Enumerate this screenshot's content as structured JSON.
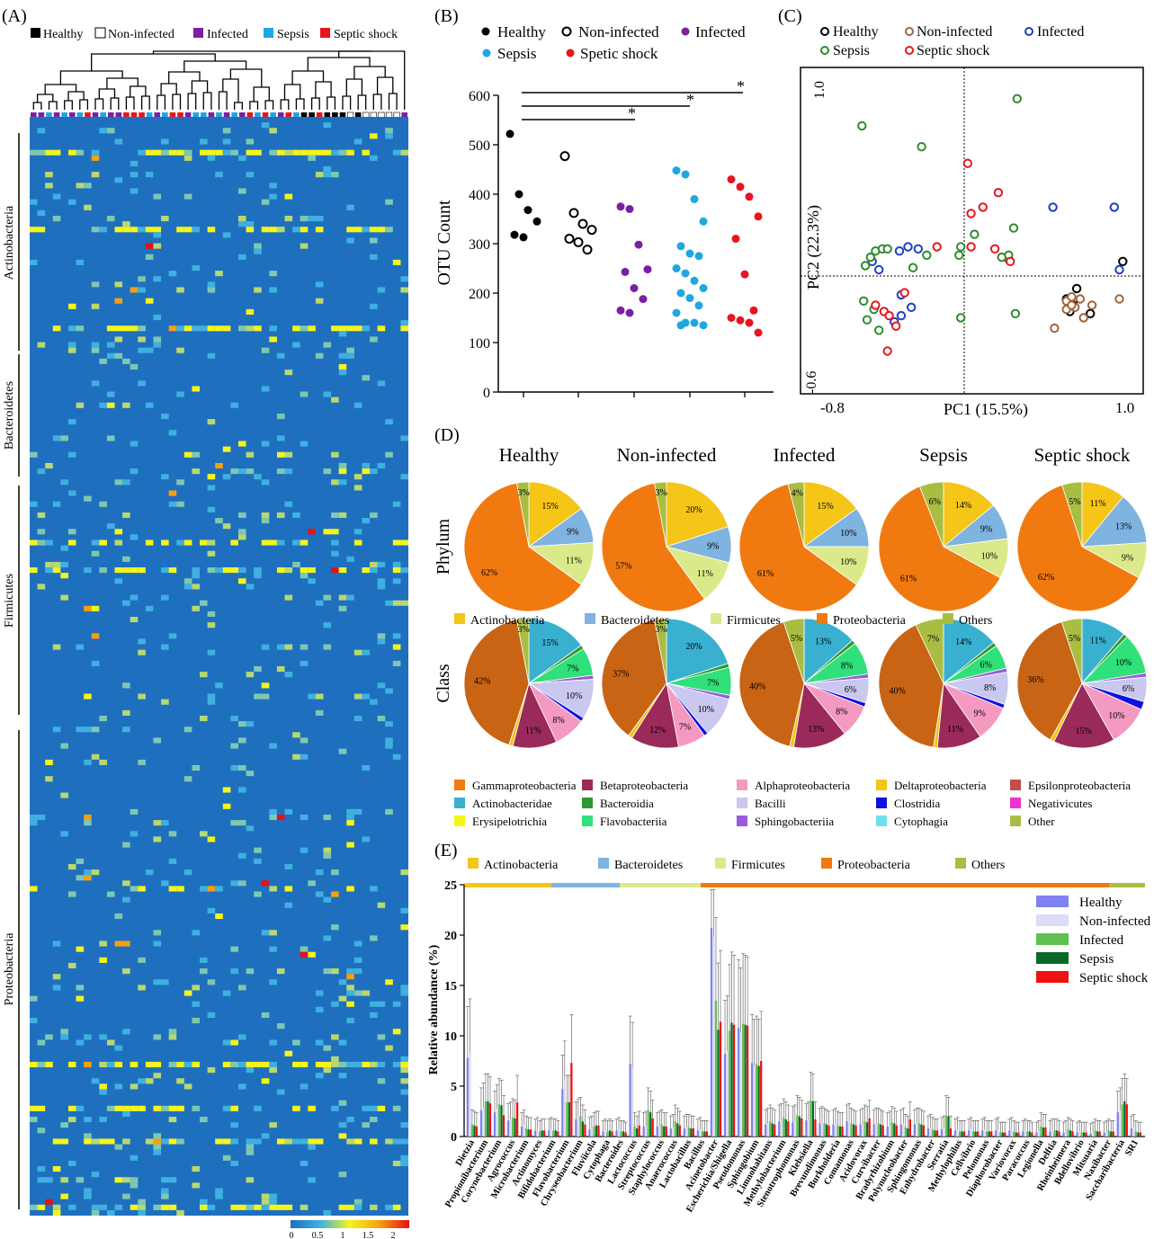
{
  "panels": {
    "A": "(A)",
    "B": "(B)",
    "C": "(C)",
    "D": "(D)",
    "E": "(E)"
  },
  "groups": [
    "Healthy",
    "Non-infected",
    "Infected",
    "Sepsis",
    "Septic shock"
  ],
  "colors": {
    "healthy": "#000000",
    "noninfected": "#ffffff",
    "infected": "#7b1fa2",
    "sepsis": "#1ea7e1",
    "septic_shock": "#e8141e",
    "heat_bg": "#1f6fbf",
    "actino": "#f5c518",
    "bacteroid": "#7fb3e0",
    "firmi": "#dce98a",
    "proteo": "#f07a10",
    "others": "#a9bd43"
  },
  "heatmap": {
    "legend": [
      "Healthy",
      "Non-infected",
      "Infected",
      "Sepsis",
      "Septic shock"
    ],
    "phyla": [
      "Actinobacteria",
      "Bacteroidetes",
      "Firmicutes",
      "Proteobacteria"
    ],
    "scale_ticks": [
      "0",
      "0.5",
      "1",
      "1.5",
      "2"
    ],
    "column_groups": [
      3,
      3,
      4,
      3,
      4,
      3,
      4,
      5,
      3,
      4,
      3,
      3,
      5,
      5,
      5,
      4,
      3,
      4,
      5,
      5,
      3,
      4,
      4,
      3,
      4,
      3,
      4,
      3,
      5,
      4,
      5,
      4,
      3,
      5,
      4,
      1,
      1,
      5,
      1,
      1,
      1,
      2,
      1,
      2,
      2,
      2,
      2,
      2,
      3
    ]
  },
  "panel_b": {
    "legend": [
      "Healthy",
      "Non-infected",
      "Infected",
      "Sepsis",
      "Spetic shock"
    ],
    "ylabel": "OTU Count",
    "yticks": [
      "0",
      "100",
      "200",
      "300",
      "400",
      "500",
      "600"
    ],
    "sig": [
      "*",
      "*",
      "*"
    ]
  },
  "panel_c": {
    "legend": [
      "Healthy",
      "Non-infected",
      "Infected",
      "Sepsis",
      "Septic shock"
    ],
    "xlabel": "PC1 (15.5%)",
    "ylabel": "PC2 (22.3%)",
    "xticks": [
      "-0.8",
      "1.0"
    ],
    "yticks": [
      "1.0",
      "-0.6"
    ]
  },
  "panel_d": {
    "titles": [
      "Healthy",
      "Non-infected",
      "Infected",
      "Sepsis",
      "Septic shock"
    ],
    "row_labels": [
      "Phylum",
      "Class"
    ],
    "phylum_legend": [
      "Actinobacteria",
      "Bacteroidetes",
      "Firmicutes",
      "Proteobacteria",
      "Others"
    ],
    "class_legend": [
      [
        "Gammaproteobacteria",
        "Betaproteobacteria",
        "Alphaproteobacteria",
        "Deltaproteobacteria",
        "Epsilonproteobacteria"
      ],
      [
        "Actinobacteridae",
        "Bacteroidia",
        "Bacilli",
        "Clostridia",
        "Negativicutes"
      ],
      [
        "Erysipelotrichia",
        "Flavobacteriia",
        "Sphingobacteriia",
        "Cytophagia",
        "Other"
      ]
    ],
    "class_legend_colors": [
      [
        "#f07a10",
        "#9a2a5a",
        "#f49ac0",
        "#f5c518",
        "#c0504d"
      ],
      [
        "#39b0d0",
        "#2e9a2e",
        "#c8c8f0",
        "#1010e0",
        "#f030d0"
      ],
      [
        "#f5f51a",
        "#30e07a",
        "#9a5ae0",
        "#70e0f0",
        "#a9bd43"
      ]
    ]
  },
  "panel_e": {
    "phylum_legend": [
      "Actinobacteria",
      "Bacteroidetes",
      "Firmicutes",
      "Proteobacteria",
      "Others"
    ],
    "ylabel": "Relative abundance (%)",
    "yticks": [
      "0",
      "5",
      "10",
      "15",
      "20",
      "25"
    ],
    "legend": [
      "Healthy",
      "Non-infected",
      "Infected",
      "Sepsis",
      "Septic shock"
    ],
    "legend_colors": [
      "#8080f0",
      "#dcdcf8",
      "#60c050",
      "#0a6a2a",
      "#f01010"
    ]
  },
  "chart_data": [
    {
      "type": "heatmap",
      "title": "",
      "rows_by_phylum": [
        "Actinobacteria",
        "Bacteroidetes",
        "Firmicutes",
        "Proteobacteria"
      ],
      "columns": 49,
      "value_range": [
        0,
        2
      ]
    },
    {
      "type": "scatter",
      "ylabel": "OTU Count",
      "ylim": [
        0,
        600
      ],
      "series": [
        {
          "name": "Healthy",
          "values": [
            522,
            400,
            368,
            345,
            318,
            313
          ]
        },
        {
          "name": "Non-infected",
          "values": [
            477,
            362,
            340,
            328,
            310,
            303,
            288
          ]
        },
        {
          "name": "Infected",
          "values": [
            375,
            370,
            298,
            248,
            243,
            210,
            188,
            165,
            160
          ]
        },
        {
          "name": "Sepsis",
          "values": [
            448,
            440,
            390,
            345,
            295,
            280,
            275,
            250,
            240,
            225,
            210,
            200,
            190,
            175,
            160,
            140,
            140,
            135,
            135
          ]
        },
        {
          "name": "Spetic shock",
          "values": [
            430,
            415,
            395,
            355,
            310,
            238,
            165,
            150,
            145,
            140,
            120
          ]
        }
      ]
    },
    {
      "type": "scatter",
      "xlabel": "PC1 (15.5%)",
      "ylabel": "PC2 (22.3%)",
      "xlim": [
        -0.8,
        1.0
      ],
      "ylim": [
        -0.6,
        1.0
      ],
      "series": [
        {
          "name": "Healthy",
          "x": [
            0.93,
            0.64,
            0.6,
            0.66,
            0.74,
            0.64,
            0.62
          ],
          "y": [
            0.07,
            -0.12,
            -0.11,
            -0.06,
            -0.18,
            -0.14,
            -0.17
          ]
        },
        {
          "name": "Non-infected",
          "x": [
            0.6,
            0.6,
            0.65,
            0.63,
            0.68,
            0.7,
            0.75,
            0.63,
            0.53,
            0.91
          ],
          "y": [
            -0.12,
            -0.16,
            -0.15,
            -0.1,
            -0.11,
            -0.2,
            -0.14,
            -0.14,
            -0.25,
            -0.11
          ]
        },
        {
          "name": "Infected",
          "x": [
            -0.54,
            -0.5,
            -0.38,
            -0.33,
            -0.27,
            -0.37,
            -0.41,
            -0.31,
            -0.37,
            0.52,
            0.88,
            0.91
          ],
          "y": [
            0.07,
            0.03,
            0.12,
            0.14,
            0.13,
            -0.19,
            -0.22,
            -0.15,
            -0.09,
            0.33,
            0.33,
            0.03
          ]
        },
        {
          "name": "Sepsis",
          "x": [
            -0.6,
            -0.58,
            -0.55,
            -0.52,
            -0.48,
            -0.45,
            -0.3,
            -0.25,
            -0.22,
            -0.03,
            0.06,
            0.26,
            0.29,
            0.3,
            0.31,
            -0.02,
            0.26,
            0.22,
            -0.59,
            -0.53,
            -0.57,
            -0.5,
            -0.02
          ],
          "y": [
            0.72,
            0.05,
            0.09,
            0.12,
            0.13,
            0.13,
            0.04,
            0.62,
            0.1,
            0.1,
            0.2,
            0.08,
            0.23,
            -0.18,
            0.85,
            -0.2,
            0.1,
            0.09,
            -0.12,
            -0.16,
            -0.21,
            -0.26,
            0.14
          ]
        },
        {
          "name": "Septic shock",
          "x": [
            0.02,
            0.04,
            0.04,
            0.11,
            0.2,
            0.27,
            0.18,
            -0.52,
            -0.47,
            -0.44,
            -0.4,
            -0.45,
            -0.16,
            -0.35
          ],
          "y": [
            0.54,
            0.3,
            0.14,
            0.33,
            0.4,
            0.07,
            0.13,
            -0.14,
            -0.17,
            -0.19,
            -0.24,
            -0.36,
            0.14,
            -0.08
          ]
        }
      ]
    },
    {
      "type": "pie",
      "title": "Phylum",
      "categories": [
        "Actinobacteria",
        "Bacteroidetes",
        "Firmicutes",
        "Proteobacteria",
        "Others"
      ],
      "series": [
        {
          "name": "Healthy",
          "values": [
            15,
            9,
            11,
            62,
            3
          ]
        },
        {
          "name": "Non-infected",
          "values": [
            20,
            9,
            11,
            57,
            3
          ]
        },
        {
          "name": "Infected",
          "values": [
            15,
            10,
            10,
            61,
            4
          ]
        },
        {
          "name": "Sepsis",
          "values": [
            14,
            9,
            10,
            61,
            6
          ]
        },
        {
          "name": "Septic shock",
          "values": [
            11,
            13,
            9,
            62,
            5
          ]
        }
      ]
    },
    {
      "type": "pie",
      "title": "Class",
      "categories": [
        "Actinobacteridae",
        "Bacteroidia",
        "Flavobacteriia",
        "Sphingobacteriia",
        "Bacilli",
        "Clostridia",
        "Alphaproteobacteria",
        "Betaproteobacteria",
        "Deltaproteobacteria",
        "Gammaproteobacteria",
        "Other"
      ],
      "series": [
        {
          "name": "Healthy",
          "values": [
            15,
            1,
            7,
            1,
            10,
            1,
            8,
            11,
            1,
            42,
            3
          ]
        },
        {
          "name": "Non-infected",
          "values": [
            20,
            1,
            7,
            1,
            10,
            1,
            7,
            12,
            1,
            37,
            3
          ]
        },
        {
          "name": "Infected",
          "values": [
            13,
            1,
            8,
            1,
            6,
            1,
            8,
            13,
            1,
            40,
            5
          ]
        },
        {
          "name": "Sepsis",
          "values": [
            14,
            1,
            6,
            1,
            8,
            1,
            9,
            11,
            1,
            40,
            7
          ]
        },
        {
          "name": "Septic shock",
          "values": [
            11,
            1,
            10,
            1,
            6,
            2,
            10,
            15,
            1,
            36,
            5
          ]
        }
      ],
      "labels_shown": [
        {
          "group": "Healthy",
          "labels": [
            "15%",
            "7%",
            "10%",
            "8%",
            "11%",
            "42%",
            "3%"
          ]
        },
        {
          "group": "Non-infected",
          "labels": [
            "20%",
            "7%",
            "10%",
            "7%",
            "12%",
            "37%",
            "3%"
          ]
        },
        {
          "group": "Infected",
          "labels": [
            "13%",
            "8%",
            "6%",
            "8%",
            "13%",
            "40%",
            "5%"
          ]
        },
        {
          "group": "Sepsis",
          "labels": [
            "14%",
            "6%",
            "8%",
            "9%",
            "11%",
            "40%",
            "7%"
          ]
        },
        {
          "group": "Septic shock",
          "labels": [
            "11%",
            "10%",
            "6%",
            "10%",
            "15%",
            "36%",
            "5%"
          ]
        }
      ]
    },
    {
      "type": "bar",
      "ylabel": "Relative abundance (%)",
      "ylim": [
        0,
        25
      ],
      "categories": [
        "Dietzia",
        "Propionibacterium",
        "Corynebacterium",
        "Agrococcus",
        "Microbacterium",
        "Actinomyces",
        "Bifidobacterium",
        "Flavobacterium",
        "Chryseobacterium",
        "Fluviicola",
        "Cytophaga",
        "Bacteroides",
        "Lactococcus",
        "Streptococcus",
        "Staphylococcus",
        "Anaerococcus",
        "Lactobacillus",
        "Bacillus",
        "Acinetobacter",
        "Escherichia/Shigella",
        "Pseudomonas",
        "Sphingobium",
        "Limnohabitans",
        "Methylobacterium",
        "Stenotrophomonas",
        "Klebsiella",
        "Brevundimonas",
        "Burkholderia",
        "Comamonas",
        "Acidovorax",
        "Curvibacter",
        "Bradyrhizobium",
        "Polynucleobacter",
        "Sphingomonas",
        "Enhydrobacter",
        "Serratia",
        "Methylophilus",
        "Cellvibrio",
        "Pelomonas",
        "Diaphorobacter",
        "Variovorax",
        "Paracoccus",
        "Legionella",
        "Delftia",
        "Rheinheimera",
        "Bdellovibrio",
        "Mitsuaria",
        "Naxibacter",
        "Saccharibacteria",
        "SR1"
      ],
      "series": [
        {
          "name": "Healthy",
          "values": [
            7.8,
            2.6,
            2.4,
            1.6,
            1.0,
            0.6,
            0.6,
            4.7,
            1.7,
            0.7,
            0.5,
            0.6,
            7.2,
            1.0,
            1.0,
            0.8,
            0.8,
            0.6,
            20.7,
            8.2,
            10.8,
            7.3,
            1.2,
            1.5,
            1.4,
            1.6,
            1.3,
            1.2,
            1.5,
            1.2,
            1.2,
            1.0,
            1.2,
            1.2,
            0.8,
            0.7,
            0.6,
            0.6,
            0.6,
            0.6,
            0.6,
            0.5,
            0.4,
            0.5,
            0.4,
            0.4,
            0.3,
            0.4,
            2.4,
            0.8
          ]
        },
        {
          "name": "Non-infected",
          "values": [
            8.3,
            2.9,
            2.8,
            1.7,
            1.2,
            0.7,
            0.7,
            5.6,
            1.9,
            0.8,
            0.6,
            0.7,
            6.8,
            1.1,
            1.1,
            0.9,
            0.9,
            0.7,
            19.8,
            8.5,
            10.3,
            7.0,
            1.3,
            1.6,
            1.5,
            1.7,
            1.4,
            1.3,
            1.6,
            1.3,
            1.3,
            1.1,
            1.3,
            1.3,
            0.9,
            0.8,
            0.7,
            0.7,
            0.7,
            0.7,
            0.7,
            0.6,
            0.5,
            0.6,
            0.5,
            0.5,
            0.4,
            0.5,
            2.6,
            0.9
          ]
        },
        {
          "name": "Infected",
          "values": [
            1.2,
            3.5,
            3.2,
            1.9,
            0.8,
            0.5,
            0.6,
            3.4,
            2.0,
            1.0,
            0.5,
            0.5,
            1.0,
            2.6,
            1.2,
            1.5,
            0.9,
            0.5,
            13.5,
            10.5,
            11.2,
            7.2,
            1.5,
            1.9,
            2.1,
            3.6,
            1.3,
            1.1,
            1.3,
            1.5,
            1.3,
            1.4,
            0.9,
            1.3,
            0.7,
            2.1,
            0.5,
            0.5,
            0.5,
            0.4,
            0.5,
            0.5,
            1.0,
            0.6,
            0.7,
            0.4,
            0.6,
            0.6,
            3.2,
            0.5
          ]
        },
        {
          "name": "Sepsis",
          "values": [
            1.1,
            3.5,
            3.1,
            1.8,
            0.7,
            0.6,
            0.6,
            3.4,
            1.5,
            1.1,
            0.6,
            0.5,
            0.8,
            2.4,
            1.0,
            1.3,
            0.8,
            0.5,
            10.6,
            11.3,
            11.1,
            7.0,
            1.3,
            1.7,
            2.0,
            3.5,
            1.2,
            1.0,
            1.2,
            1.4,
            1.2,
            1.3,
            0.8,
            1.2,
            0.6,
            2.0,
            0.5,
            0.5,
            0.5,
            0.4,
            0.4,
            0.5,
            0.9,
            0.6,
            0.6,
            0.4,
            0.5,
            0.5,
            3.5,
            0.4
          ]
        },
        {
          "name": "Septic shock",
          "values": [
            1.0,
            3.3,
            2.1,
            3.4,
            0.7,
            0.6,
            0.5,
            7.3,
            1.2,
            1.1,
            0.5,
            0.4,
            1.1,
            1.8,
            1.0,
            1.1,
            0.8,
            0.5,
            11.4,
            11.1,
            11.0,
            7.5,
            1.2,
            1.5,
            1.8,
            1.7,
            1.1,
            1.0,
            1.1,
            1.8,
            1.1,
            1.1,
            1.7,
            1.1,
            0.6,
            0.8,
            0.5,
            0.5,
            0.5,
            0.4,
            0.4,
            0.4,
            0.9,
            0.5,
            0.5,
            0.4,
            0.5,
            0.5,
            3.2,
            0.4
          ]
        }
      ]
    }
  ]
}
